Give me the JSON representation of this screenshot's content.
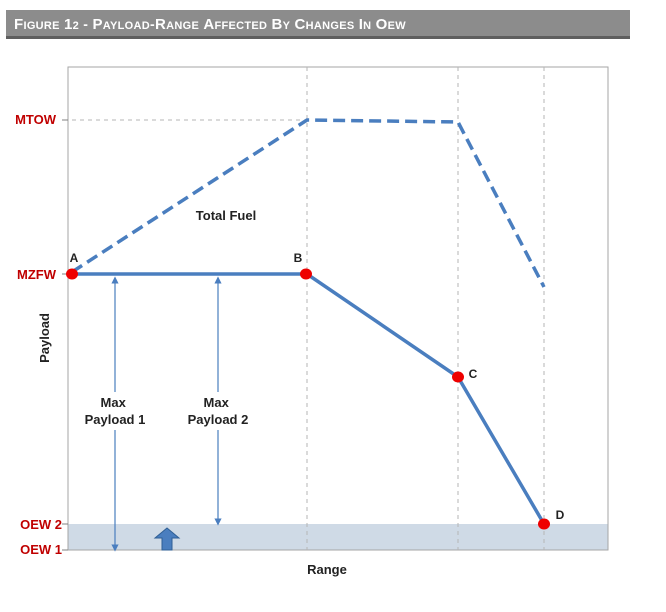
{
  "figure": {
    "title": "Figure 12 - Payload-Range Affected by Changes in OEW"
  },
  "diagram": {
    "y_levels": {
      "mtow": "MTOW",
      "mzfw": "MZFW",
      "oew2": "OEW 2",
      "oew1": "OEW 1"
    },
    "axes": {
      "x_label": "Range",
      "y_label": "Payload"
    },
    "annotations": {
      "total_fuel": "Total Fuel",
      "max_payload_1": [
        "Max",
        "Payload 1"
      ],
      "max_payload_2": [
        "Max",
        "Payload 2"
      ]
    },
    "points": [
      "A",
      "B",
      "C",
      "D"
    ],
    "colors": {
      "header_bg": "#8c8c8c",
      "level_label": "#c00000",
      "payload_line": "#4a7ebf",
      "point": "#ee0000",
      "oew_band": "#cfdae6",
      "up_arrow": "#4a7ebf"
    }
  }
}
